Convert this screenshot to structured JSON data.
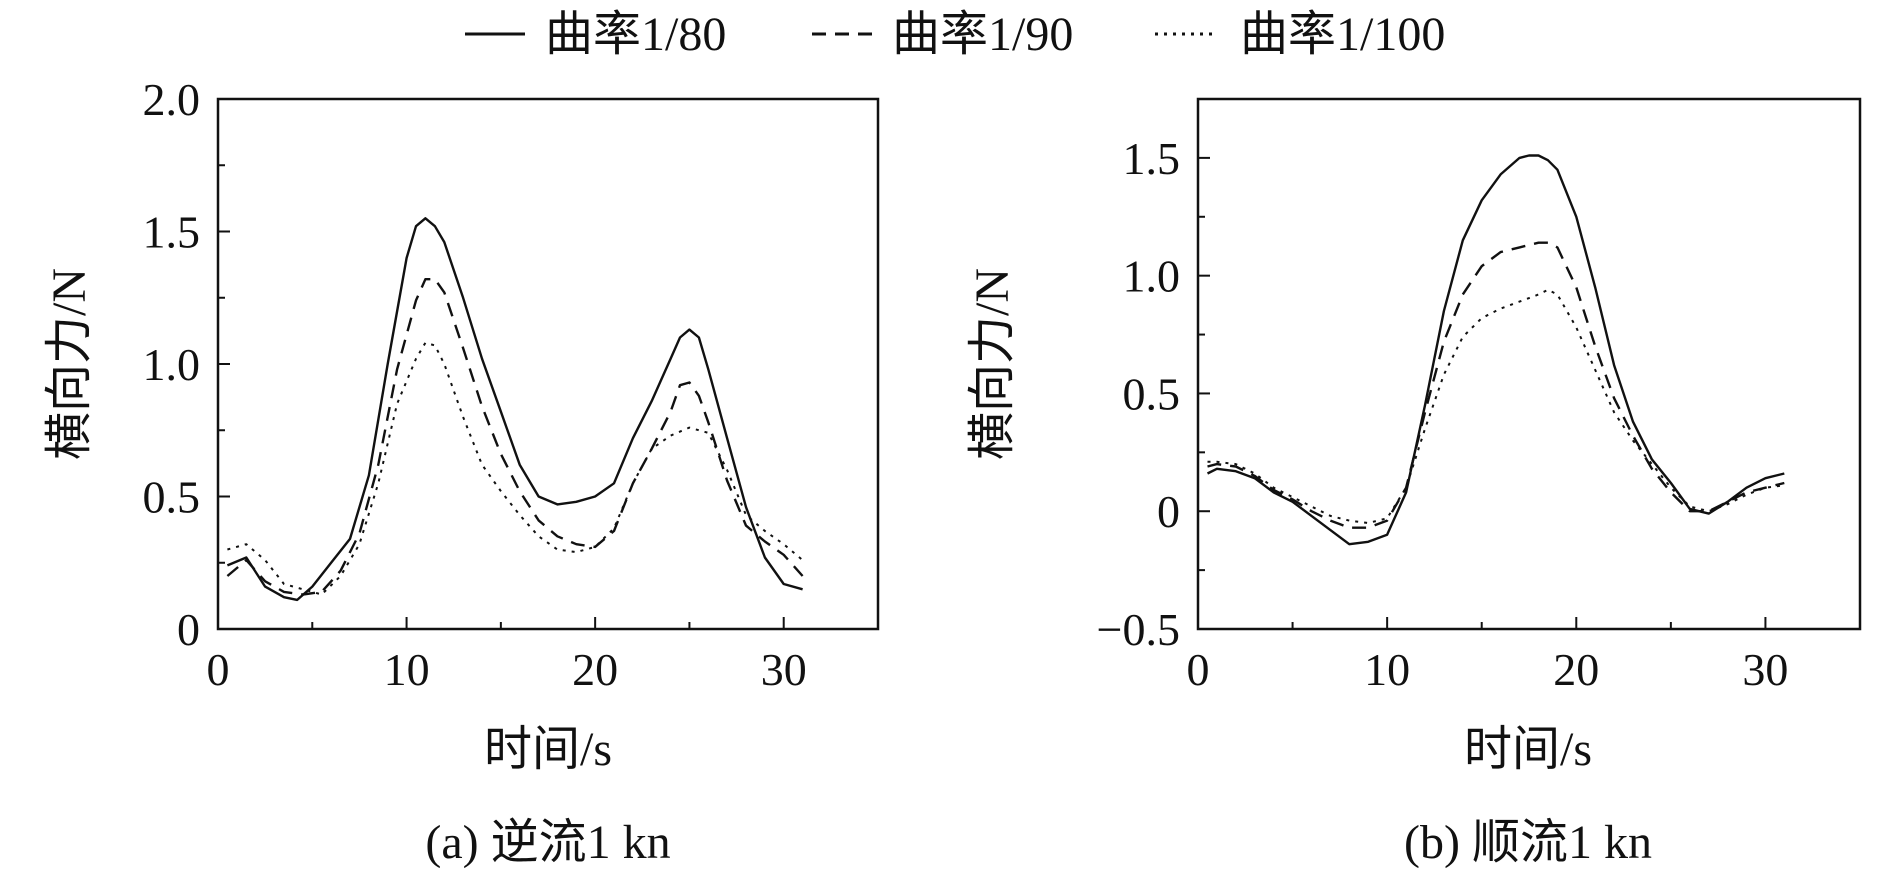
{
  "legend": {
    "items": [
      {
        "label": "曲率1/80",
        "style": "solid"
      },
      {
        "label": "曲率1/90",
        "style": "dashed"
      },
      {
        "label": "曲率1/100",
        "style": "dotted"
      }
    ]
  },
  "chart_data": [
    {
      "type": "line",
      "caption": "(a) 逆流1 kn",
      "xlabel": "时间/s",
      "ylabel": "横向力/N",
      "xlim": [
        0,
        35
      ],
      "ylim": [
        0,
        2.0
      ],
      "xticks": [
        0,
        10,
        20,
        30
      ],
      "xtick_labels": [
        "0",
        "10",
        "20",
        "30"
      ],
      "yticks": [
        0,
        0.5,
        1.0,
        1.5,
        2.0
      ],
      "ytick_labels": [
        "0",
        "0.5",
        "1.0",
        "1.5",
        "2.0"
      ],
      "grid": false,
      "series": [
        {
          "name": "曲率1/80",
          "style": "solid",
          "x": [
            0.5,
            1.5,
            2.5,
            3.5,
            4.2,
            5,
            6,
            7,
            8,
            9,
            10,
            10.5,
            11,
            11.5,
            12,
            13,
            14,
            15,
            16,
            17,
            18,
            19,
            20,
            21,
            22,
            23,
            24,
            24.5,
            25,
            25.5,
            26,
            27,
            28,
            29,
            30,
            31
          ],
          "y": [
            0.24,
            0.27,
            0.16,
            0.12,
            0.11,
            0.16,
            0.25,
            0.34,
            0.58,
            1.0,
            1.4,
            1.52,
            1.55,
            1.52,
            1.46,
            1.25,
            1.02,
            0.82,
            0.62,
            0.5,
            0.47,
            0.48,
            0.5,
            0.55,
            0.72,
            0.86,
            1.02,
            1.1,
            1.13,
            1.1,
            0.98,
            0.72,
            0.46,
            0.27,
            0.17,
            0.15
          ]
        },
        {
          "name": "曲率1/90",
          "style": "dashed",
          "x": [
            0.5,
            1.5,
            2.5,
            3.5,
            4.5,
            5.5,
            6.5,
            7.5,
            8.5,
            9.5,
            10.5,
            11,
            11.5,
            12,
            13,
            14,
            15,
            16,
            17,
            18,
            19,
            20,
            21,
            22,
            23,
            24,
            24.5,
            25,
            25.5,
            26,
            27,
            28,
            29,
            30,
            31
          ],
          "y": [
            0.2,
            0.26,
            0.18,
            0.14,
            0.13,
            0.14,
            0.22,
            0.36,
            0.62,
            0.98,
            1.24,
            1.32,
            1.32,
            1.27,
            1.06,
            0.84,
            0.66,
            0.52,
            0.41,
            0.35,
            0.32,
            0.31,
            0.37,
            0.55,
            0.68,
            0.82,
            0.92,
            0.93,
            0.88,
            0.78,
            0.56,
            0.39,
            0.33,
            0.28,
            0.2
          ]
        },
        {
          "name": "曲率1/100",
          "style": "dotted",
          "x": [
            0.5,
            1.5,
            2.5,
            3.5,
            4.5,
            5.5,
            6.5,
            7.5,
            8.5,
            9.5,
            10.5,
            11,
            11.5,
            12,
            13,
            14,
            15,
            16,
            17,
            18,
            19,
            20,
            21,
            22,
            23,
            24,
            25,
            26,
            27,
            28,
            29,
            30,
            31
          ],
          "y": [
            0.3,
            0.32,
            0.26,
            0.17,
            0.15,
            0.13,
            0.2,
            0.32,
            0.55,
            0.85,
            1.02,
            1.08,
            1.07,
            1.0,
            0.8,
            0.62,
            0.52,
            0.43,
            0.35,
            0.3,
            0.29,
            0.31,
            0.38,
            0.55,
            0.68,
            0.73,
            0.76,
            0.74,
            0.6,
            0.43,
            0.37,
            0.32,
            0.26
          ]
        }
      ]
    },
    {
      "type": "line",
      "caption": "(b) 顺流1 kn",
      "xlabel": "时间/s",
      "ylabel": "横向力/N",
      "xlim": [
        0,
        35
      ],
      "ylim": [
        -0.5,
        1.75
      ],
      "xticks": [
        0,
        10,
        20,
        30
      ],
      "xtick_labels": [
        "0",
        "10",
        "20",
        "30"
      ],
      "yticks": [
        -0.5,
        0,
        0.5,
        1.0,
        1.5
      ],
      "ytick_labels": [
        "−0.5",
        "0",
        "0.5",
        "1.0",
        "1.5"
      ],
      "grid": false,
      "series": [
        {
          "name": "曲率1/80",
          "style": "solid",
          "x": [
            0.5,
            1,
            2,
            3,
            4,
            5,
            6,
            7,
            8,
            9,
            10,
            11,
            12,
            13,
            14,
            15,
            16,
            17,
            17.5,
            18,
            18.5,
            19,
            20,
            21,
            22,
            23,
            24,
            25,
            26,
            27,
            28,
            29,
            30,
            31
          ],
          "y": [
            0.16,
            0.18,
            0.17,
            0.14,
            0.08,
            0.04,
            -0.02,
            -0.08,
            -0.14,
            -0.13,
            -0.1,
            0.08,
            0.45,
            0.85,
            1.15,
            1.32,
            1.43,
            1.5,
            1.51,
            1.51,
            1.49,
            1.45,
            1.25,
            0.95,
            0.62,
            0.38,
            0.22,
            0.12,
            0.01,
            -0.01,
            0.04,
            0.1,
            0.14,
            0.16
          ]
        },
        {
          "name": "曲率1/90",
          "style": "dashed",
          "x": [
            0.5,
            1,
            2,
            3,
            4,
            5,
            6,
            7,
            8,
            9,
            10,
            11,
            12,
            13,
            14,
            15,
            16,
            17,
            18,
            18.5,
            19,
            20,
            21,
            22,
            23,
            24,
            25,
            26,
            27,
            28,
            29,
            30,
            31
          ],
          "y": [
            0.19,
            0.2,
            0.19,
            0.15,
            0.09,
            0.05,
            0.0,
            -0.04,
            -0.07,
            -0.07,
            -0.04,
            0.1,
            0.42,
            0.72,
            0.92,
            1.04,
            1.1,
            1.12,
            1.14,
            1.14,
            1.12,
            0.95,
            0.7,
            0.48,
            0.32,
            0.18,
            0.08,
            0.0,
            0.0,
            0.04,
            0.08,
            0.1,
            0.12
          ]
        },
        {
          "name": "曲率1/100",
          "style": "dotted",
          "x": [
            0.5,
            1,
            2,
            3,
            4,
            5,
            6,
            7,
            8,
            9,
            10,
            11,
            12,
            13,
            14,
            15,
            16,
            17,
            18,
            18.5,
            19,
            20,
            21,
            22,
            23,
            24,
            25,
            26,
            27,
            28,
            29,
            30,
            31
          ],
          "y": [
            0.21,
            0.21,
            0.2,
            0.16,
            0.1,
            0.06,
            0.02,
            -0.02,
            -0.04,
            -0.05,
            -0.03,
            0.1,
            0.35,
            0.58,
            0.74,
            0.82,
            0.86,
            0.89,
            0.92,
            0.94,
            0.92,
            0.78,
            0.6,
            0.42,
            0.3,
            0.2,
            0.1,
            0.02,
            0.0,
            0.03,
            0.07,
            0.1,
            0.11
          ]
        }
      ]
    }
  ]
}
